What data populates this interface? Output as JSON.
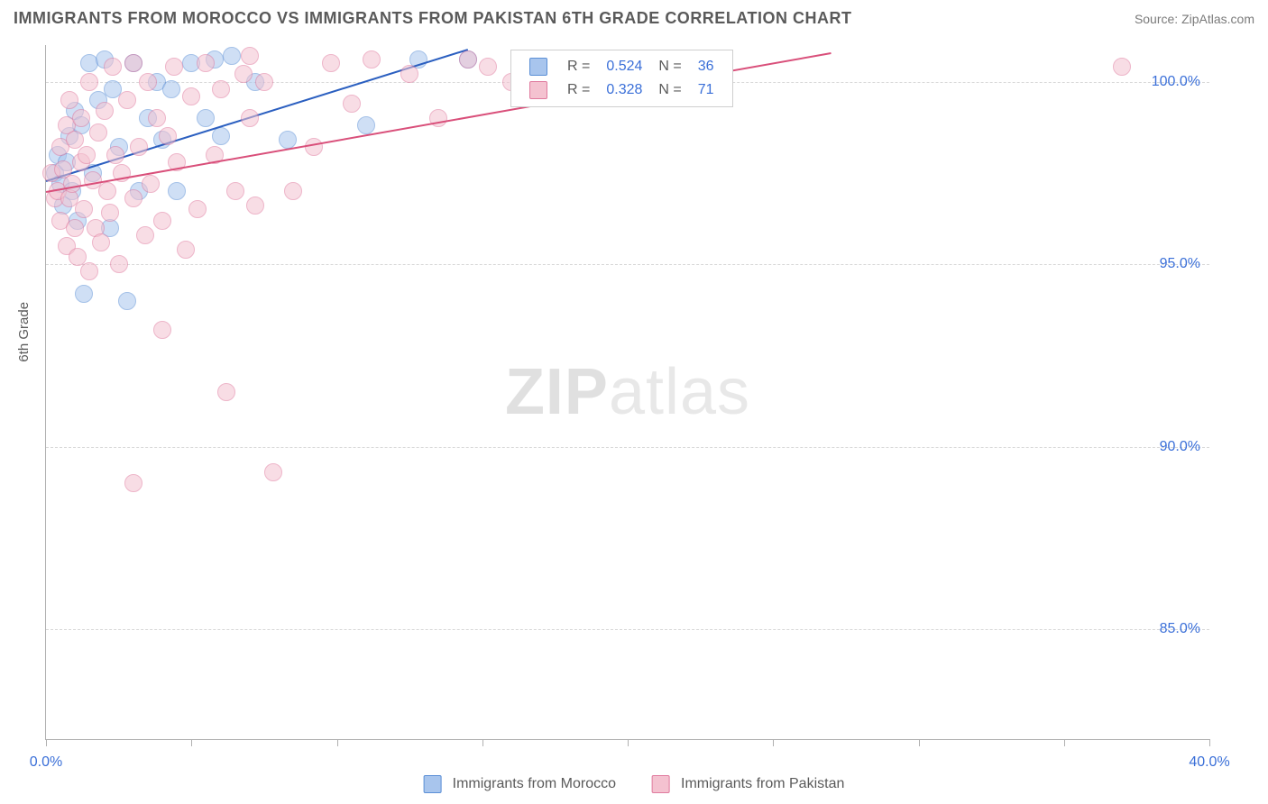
{
  "title": "IMMIGRANTS FROM MOROCCO VS IMMIGRANTS FROM PAKISTAN 6TH GRADE CORRELATION CHART",
  "source": "Source: ZipAtlas.com",
  "ylabel": "6th Grade",
  "watermark_zip": "ZIP",
  "watermark_atlas": "atlas",
  "chart": {
    "type": "scatter",
    "xlim": [
      0,
      40
    ],
    "ylim": [
      82,
      101
    ],
    "xticks": [
      0,
      5,
      10,
      15,
      20,
      25,
      30,
      35,
      40
    ],
    "xtick_labels": {
      "0": "0.0%",
      "40": "40.0%"
    },
    "yticks": [
      85,
      90,
      95,
      100
    ],
    "ytick_labels": [
      "85.0%",
      "90.0%",
      "95.0%",
      "100.0%"
    ],
    "background_color": "#ffffff",
    "grid_color": "#d8d8d8",
    "axis_color": "#b0b0b0",
    "tick_label_color": "#3a6fd8",
    "marker_radius": 9,
    "marker_opacity": 0.55,
    "series": [
      {
        "name": "Immigrants from Morocco",
        "color_fill": "#a8c5ed",
        "color_stroke": "#5b8fd6",
        "trend_color": "#2b5fc0",
        "R": "0.524",
        "N": "36",
        "trend": {
          "x1": 0,
          "y1": 97.3,
          "x2": 14.5,
          "y2": 100.9
        },
        "points": [
          [
            0.3,
            97.5
          ],
          [
            0.4,
            98.0
          ],
          [
            0.5,
            97.2
          ],
          [
            0.6,
            96.6
          ],
          [
            0.7,
            97.8
          ],
          [
            0.8,
            98.5
          ],
          [
            0.9,
            97.0
          ],
          [
            1.0,
            99.2
          ],
          [
            1.1,
            96.2
          ],
          [
            1.2,
            98.8
          ],
          [
            1.3,
            94.2
          ],
          [
            1.5,
            100.5
          ],
          [
            1.6,
            97.5
          ],
          [
            1.8,
            99.5
          ],
          [
            2.0,
            100.6
          ],
          [
            2.2,
            96.0
          ],
          [
            2.3,
            99.8
          ],
          [
            2.5,
            98.2
          ],
          [
            2.8,
            94.0
          ],
          [
            3.0,
            100.5
          ],
          [
            3.2,
            97.0
          ],
          [
            3.5,
            99.0
          ],
          [
            3.8,
            100.0
          ],
          [
            4.0,
            98.4
          ],
          [
            4.3,
            99.8
          ],
          [
            4.5,
            97.0
          ],
          [
            5.0,
            100.5
          ],
          [
            5.5,
            99.0
          ],
          [
            5.8,
            100.6
          ],
          [
            6.0,
            98.5
          ],
          [
            6.4,
            100.7
          ],
          [
            7.2,
            100.0
          ],
          [
            8.3,
            98.4
          ],
          [
            11.0,
            98.8
          ],
          [
            12.8,
            100.6
          ],
          [
            14.5,
            100.6
          ]
        ]
      },
      {
        "name": "Immigrants from Pakistan",
        "color_fill": "#f4c2d0",
        "color_stroke": "#e07a9e",
        "trend_color": "#d94f7a",
        "R": "0.328",
        "N": "71",
        "trend": {
          "x1": 0,
          "y1": 97.0,
          "x2": 27.0,
          "y2": 100.8
        },
        "points": [
          [
            0.2,
            97.5
          ],
          [
            0.3,
            96.8
          ],
          [
            0.4,
            97.0
          ],
          [
            0.5,
            98.2
          ],
          [
            0.5,
            96.2
          ],
          [
            0.6,
            97.6
          ],
          [
            0.7,
            95.5
          ],
          [
            0.7,
            98.8
          ],
          [
            0.8,
            96.8
          ],
          [
            0.8,
            99.5
          ],
          [
            0.9,
            97.2
          ],
          [
            1.0,
            96.0
          ],
          [
            1.0,
            98.4
          ],
          [
            1.1,
            95.2
          ],
          [
            1.2,
            97.8
          ],
          [
            1.2,
            99.0
          ],
          [
            1.3,
            96.5
          ],
          [
            1.4,
            98.0
          ],
          [
            1.5,
            94.8
          ],
          [
            1.5,
            100.0
          ],
          [
            1.6,
            97.3
          ],
          [
            1.7,
            96.0
          ],
          [
            1.8,
            98.6
          ],
          [
            1.9,
            95.6
          ],
          [
            2.0,
            99.2
          ],
          [
            2.1,
            97.0
          ],
          [
            2.2,
            96.4
          ],
          [
            2.3,
            100.4
          ],
          [
            2.4,
            98.0
          ],
          [
            2.5,
            95.0
          ],
          [
            2.6,
            97.5
          ],
          [
            2.8,
            99.5
          ],
          [
            3.0,
            96.8
          ],
          [
            3.0,
            100.5
          ],
          [
            3.2,
            98.2
          ],
          [
            3.4,
            95.8
          ],
          [
            3.5,
            100.0
          ],
          [
            3.6,
            97.2
          ],
          [
            3.8,
            99.0
          ],
          [
            4.0,
            96.2
          ],
          [
            4.0,
            93.2
          ],
          [
            4.2,
            98.5
          ],
          [
            4.4,
            100.4
          ],
          [
            4.5,
            97.8
          ],
          [
            4.8,
            95.4
          ],
          [
            5.0,
            99.6
          ],
          [
            5.2,
            96.5
          ],
          [
            5.5,
            100.5
          ],
          [
            5.8,
            98.0
          ],
          [
            6.0,
            99.8
          ],
          [
            6.2,
            91.5
          ],
          [
            6.5,
            97.0
          ],
          [
            6.8,
            100.2
          ],
          [
            7.0,
            99.0
          ],
          [
            7.0,
            100.7
          ],
          [
            7.2,
            96.6
          ],
          [
            7.5,
            100.0
          ],
          [
            7.8,
            89.3
          ],
          [
            8.5,
            97.0
          ],
          [
            9.2,
            98.2
          ],
          [
            9.8,
            100.5
          ],
          [
            10.5,
            99.4
          ],
          [
            11.2,
            100.6
          ],
          [
            12.5,
            100.2
          ],
          [
            13.5,
            99.0
          ],
          [
            14.5,
            100.6
          ],
          [
            15.2,
            100.4
          ],
          [
            16.0,
            100.0
          ],
          [
            16.5,
            100.6
          ],
          [
            37.0,
            100.4
          ],
          [
            3.0,
            89.0
          ]
        ]
      }
    ]
  },
  "legend_top": {
    "R_label": "R =",
    "N_label": "N ="
  },
  "legend_bottom": {
    "series1": "Immigrants from Morocco",
    "series2": "Immigrants from Pakistan"
  }
}
